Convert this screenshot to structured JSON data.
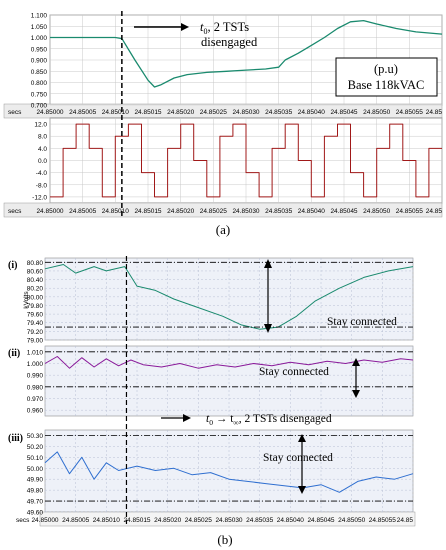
{
  "captions": {
    "a": "(a)",
    "b": "(b)"
  },
  "time_axis": {
    "unit": "secs",
    "ticks": [
      24.85,
      24.85005,
      24.8501,
      24.85015,
      24.8502,
      24.85025,
      24.8503,
      24.85035,
      24.8504,
      24.85045,
      24.8505,
      24.85055,
      24.8506
    ],
    "tick_labels_a": [
      "24.85000",
      "24.85005",
      "24.85010",
      "24.85015",
      "24.85020",
      "24.85025",
      "24.85030",
      "24.85035",
      "24.85040",
      "24.85045",
      "24.85050",
      "24.85055",
      "24.85"
    ],
    "tick_labels_b": [
      "24.85000",
      "24.85005",
      "24.85010",
      "24.85015",
      "24.85020",
      "24.85025",
      "24.85030",
      "24.85035",
      "24.85040",
      "24.85045",
      "24.85050",
      "24.85055",
      "24.85"
    ],
    "event_time": 24.85011
  },
  "panel_a": {
    "annotation_event": "t₀, 2 TSTs disengaged",
    "annotation_event_line1": "t",
    "annotation_event_sub": "0",
    "annotation_event_rest": ", 2 TSTs",
    "annotation_event_line2": "disengaged",
    "box_line1": "(p.u)",
    "box_line2": "Base 118kVAC"
  },
  "panel_b": {
    "annotation_event": "t₀ → t∞, 2 TSTs disengaged",
    "annotation_event_text": "t",
    "annotation_event_sub1": "0",
    "annotation_event_arrow": " → t",
    "annotation_event_sub2": "∞",
    "annotation_event_tail": ", 2 TSTs disengaged",
    "stay_connected": "Stay connected",
    "panel_labels": [
      "(i)",
      "(ii)",
      "(iii)"
    ],
    "i_ylabel": "kVolts"
  },
  "chart_data": [
    {
      "type": "line",
      "title": "",
      "xlabel": "secs",
      "ylabel": "",
      "ylim": [
        0.7,
        1.1
      ],
      "yticks": [
        "1.100",
        "1.050",
        "1.000",
        "0.950",
        "0.900",
        "0.850",
        "0.800",
        "0.750",
        "0.700"
      ],
      "series": [
        {
          "color": "#1a8a6e",
          "x": [
            24.85,
            24.8501,
            24.85011,
            24.85013,
            24.85015,
            24.85016,
            24.85017,
            24.85019,
            24.85021,
            24.85024,
            24.85027,
            24.8503,
            24.85033,
            24.85035,
            24.85036,
            24.85038,
            24.8504,
            24.85042,
            24.85044,
            24.85046,
            24.85048,
            24.8505,
            24.85053,
            24.85056,
            24.8506
          ],
          "y": [
            1.0,
            1.0,
            0.995,
            0.9,
            0.81,
            0.78,
            0.79,
            0.82,
            0.835,
            0.845,
            0.85,
            0.855,
            0.86,
            0.868,
            0.9,
            0.93,
            0.965,
            1.0,
            1.04,
            1.07,
            1.075,
            1.06,
            1.04,
            1.025,
            1.015
          ]
        }
      ]
    },
    {
      "type": "line",
      "title": "",
      "xlabel": "secs",
      "ylabel": "",
      "ylim": [
        -14,
        14
      ],
      "yticks": [
        "12.0",
        "8.0",
        "4.0",
        "0.0",
        "-4.0",
        "-8.0",
        "-12.0"
      ],
      "series": [
        {
          "color": "#a01818",
          "x": [
            24.85,
            24.85002,
            24.85002,
            24.85004,
            24.85004,
            24.85006,
            24.85006,
            24.85008,
            24.85008,
            24.8501,
            24.8501,
            24.85012,
            24.85012,
            24.85014,
            24.85014,
            24.85016,
            24.85016,
            24.85018,
            24.85018,
            24.8502,
            24.8502,
            24.85022,
            24.85022,
            24.85024,
            24.85024,
            24.85026,
            24.85026,
            24.85028,
            24.85028,
            24.8503,
            24.8503,
            24.85032,
            24.85032,
            24.85034,
            24.85034,
            24.85036,
            24.85036,
            24.85038,
            24.85038,
            24.8504,
            24.8504,
            24.85042,
            24.85042,
            24.85044,
            24.85044,
            24.85046,
            24.85046,
            24.85048,
            24.85048,
            24.8505,
            24.8505,
            24.85052,
            24.85052,
            24.85054,
            24.85054,
            24.85056,
            24.85056,
            24.85058,
            24.85058,
            24.8506
          ],
          "y": [
            -12,
            -12,
            4,
            4,
            12,
            12,
            4,
            4,
            -12,
            -12,
            8,
            8,
            12,
            12,
            -4,
            -4,
            -12,
            -12,
            4,
            4,
            12,
            12,
            0,
            0,
            -12,
            -12,
            8,
            8,
            12,
            12,
            -4,
            -4,
            -12,
            -12,
            4,
            4,
            12,
            12,
            0,
            0,
            -12,
            -12,
            8,
            8,
            12,
            12,
            -4,
            -4,
            -12,
            -12,
            4,
            4,
            12,
            12,
            0,
            0,
            -12,
            -12,
            4,
            4
          ]
        }
      ]
    },
    {
      "type": "line",
      "title": "",
      "xlabel": "secs",
      "ylabel": "kVolts",
      "ylim": [
        79.0,
        80.9
      ],
      "yticks": [
        "80.80",
        "80.60",
        "80.40",
        "80.20",
        "80.00",
        "79.80",
        "79.60",
        "79.40",
        "79.20",
        "79.00"
      ],
      "series": [
        {
          "color": "#1a8a6e",
          "x": [
            24.85,
            24.85003,
            24.85005,
            24.85008,
            24.8501,
            24.85013,
            24.85015,
            24.85018,
            24.85021,
            24.85025,
            24.85029,
            24.85032,
            24.85035,
            24.85038,
            24.85041,
            24.85044,
            24.85048,
            24.85052,
            24.85056,
            24.8506
          ],
          "y": [
            80.65,
            80.75,
            80.55,
            80.7,
            80.6,
            80.7,
            80.25,
            80.15,
            79.95,
            79.75,
            79.55,
            79.35,
            79.25,
            79.3,
            79.55,
            79.9,
            80.2,
            80.45,
            80.6,
            80.7
          ]
        }
      ]
    },
    {
      "type": "line",
      "title": "",
      "xlabel": "secs",
      "ylabel": "",
      "ylim": [
        0.955,
        1.015
      ],
      "yticks": [
        "1.010",
        "1.000",
        "0.990",
        "0.980",
        "0.970",
        "0.960"
      ],
      "series": [
        {
          "color": "#8a1a9a",
          "x": [
            24.85,
            24.85002,
            24.85004,
            24.85006,
            24.85008,
            24.8501,
            24.85012,
            24.85014,
            24.85016,
            24.85019,
            24.85022,
            24.85025,
            24.85028,
            24.85031,
            24.85034,
            24.85037,
            24.8504,
            24.85043,
            24.85046,
            24.85049,
            24.85052,
            24.85055,
            24.85058,
            24.8506
          ],
          "y": [
            1.0,
            1.006,
            0.996,
            1.005,
            0.997,
            1.004,
            0.998,
            1.003,
            0.999,
            0.997,
            1.0,
            0.996,
            0.999,
            0.997,
            1.0,
            0.998,
            1.001,
            0.999,
            1.002,
            1.0,
            1.003,
            1.001,
            1.004,
            1.003
          ]
        }
      ]
    },
    {
      "type": "line",
      "title": "",
      "xlabel": "secs",
      "ylabel": "",
      "ylim": [
        49.6,
        50.35
      ],
      "yticks": [
        "50.30",
        "50.20",
        "50.10",
        "50.00",
        "49.90",
        "49.80",
        "49.70",
        "49.60"
      ],
      "series": [
        {
          "color": "#2f6fd0",
          "x": [
            24.85,
            24.85002,
            24.85004,
            24.85006,
            24.85008,
            24.8501,
            24.85012,
            24.85015,
            24.85018,
            24.85021,
            24.85024,
            24.85027,
            24.8503,
            24.85033,
            24.85036,
            24.85039,
            24.85042,
            24.85045,
            24.85048,
            24.85051,
            24.85054,
            24.85057,
            24.8506
          ],
          "y": [
            50.05,
            50.15,
            49.95,
            50.1,
            49.9,
            50.05,
            49.98,
            50.02,
            49.98,
            50.0,
            49.94,
            49.96,
            49.9,
            49.88,
            49.86,
            49.84,
            49.82,
            49.85,
            49.78,
            49.88,
            49.92,
            49.9,
            49.95
          ]
        }
      ]
    }
  ]
}
